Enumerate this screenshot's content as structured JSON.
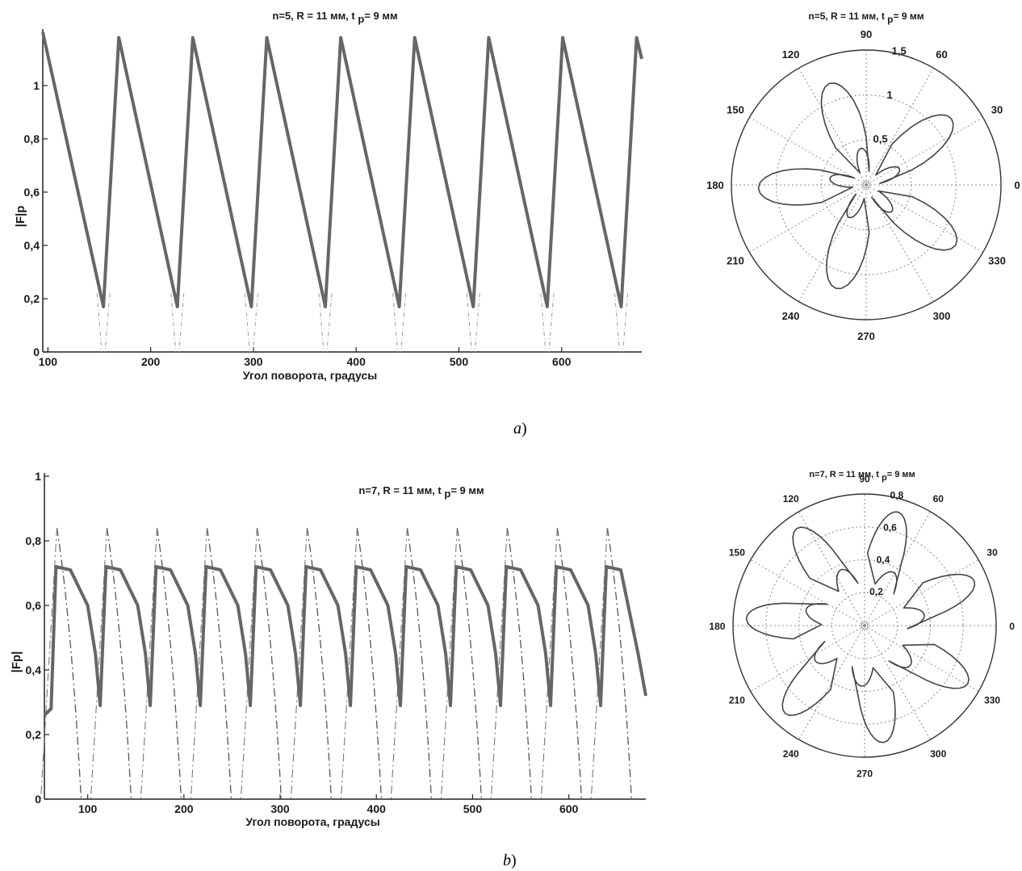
{
  "chart_data": [
    {
      "id": "a-line",
      "type": "line",
      "title": "n=5, R = 11 мм, t p= 9 мм",
      "xlabel": "Угол поворота, градусы",
      "ylabel": "|F|p",
      "xlim": [
        95,
        678
      ],
      "ylim": [
        0,
        1.2
      ],
      "xticks": [
        100,
        200,
        300,
        400,
        500,
        600
      ],
      "yticks": [
        0,
        0.2,
        0.4,
        0.6,
        0.8,
        1
      ],
      "ytick_labels": [
        "0",
        "0,2",
        "0,4",
        "0,6",
        "0,8",
        "1"
      ],
      "grid": false,
      "series": [
        {
          "style": "solid",
          "x": [
            95,
            154,
            154,
            169,
            226,
            226,
            241,
            298,
            298,
            313,
            370,
            370,
            385,
            442,
            442,
            457,
            514,
            514,
            529,
            586,
            586,
            601,
            658,
            658,
            673,
            678
          ],
          "y": [
            1.2,
            0.17,
            0.17,
            1.18,
            0.17,
            0.17,
            1.18,
            0.17,
            0.17,
            1.18,
            0.17,
            0.17,
            1.18,
            0.17,
            0.17,
            1.18,
            0.17,
            0.17,
            1.18,
            0.17,
            0.17,
            1.18,
            0.17,
            0.17,
            1.18,
            1.1
          ]
        }
      ],
      "dashed_minima_x": [
        154,
        226,
        298,
        370,
        442,
        514,
        586,
        658
      ]
    },
    {
      "id": "a-polar",
      "type": "polar",
      "title": "n=5, R = 11 мм, t p= 9 мм",
      "rmax": 1.5,
      "radial_ticks": [
        0.5,
        1,
        1.5
      ],
      "radial_tick_labels": [
        "0,5",
        "1",
        "1,5"
      ],
      "angle_ticks": [
        0,
        30,
        60,
        90,
        120,
        150,
        180,
        210,
        240,
        270,
        300,
        330
      ],
      "blades": 5,
      "blade_peak": 1.2,
      "blade_min": 0.17
    },
    {
      "id": "b-line",
      "type": "line",
      "title": "n=7, R = 11 мм, t p= 9 мм",
      "xlabel": "Угол поворота, градусы",
      "ylabel": "|Fp|",
      "xlim": [
        55,
        680
      ],
      "ylim": [
        0,
        1
      ],
      "xticks": [
        100,
        200,
        300,
        400,
        500,
        600
      ],
      "yticks": [
        0,
        0.2,
        0.4,
        0.6,
        0.8,
        1
      ],
      "ytick_labels": [
        "0",
        "0,2",
        "0,4",
        "0,6",
        "0,8",
        "1"
      ],
      "grid": false,
      "series": [
        {
          "style": "solid",
          "x": [
            55,
            62,
            67,
            82,
            100,
            108,
            113,
            119,
            134,
            152,
            160,
            165,
            171,
            186,
            204,
            212,
            217,
            223,
            238,
            256,
            264,
            269,
            275,
            290,
            308,
            316,
            321,
            327,
            342,
            360,
            368,
            373,
            379,
            394,
            412,
            420,
            425,
            431,
            446,
            464,
            472,
            477,
            483,
            498,
            516,
            524,
            529,
            535,
            550,
            568,
            576,
            581,
            587,
            602,
            620,
            628,
            633,
            639,
            654,
            672,
            680
          ],
          "y": [
            0.26,
            0.28,
            0.72,
            0.71,
            0.6,
            0.45,
            0.29,
            0.72,
            0.71,
            0.6,
            0.45,
            0.29,
            0.72,
            0.71,
            0.6,
            0.45,
            0.29,
            0.72,
            0.71,
            0.6,
            0.45,
            0.29,
            0.72,
            0.71,
            0.6,
            0.45,
            0.29,
            0.72,
            0.71,
            0.6,
            0.45,
            0.29,
            0.72,
            0.71,
            0.6,
            0.45,
            0.29,
            0.72,
            0.71,
            0.6,
            0.45,
            0.29,
            0.72,
            0.71,
            0.6,
            0.45,
            0.29,
            0.72,
            0.71,
            0.6,
            0.45,
            0.29,
            0.72,
            0.71,
            0.6,
            0.45,
            0.29,
            0.72,
            0.71,
            0.45,
            0.32
          ]
        }
      ],
      "dashed_peaks_x": [
        68,
        120,
        172,
        224,
        276,
        328,
        380,
        432,
        484,
        536,
        588,
        640
      ],
      "dashed_peak_y": 0.84
    },
    {
      "id": "b-polar",
      "type": "polar",
      "title": "n=7, R = 11 мм, t p= 9 мм",
      "rmax": 0.8,
      "radial_ticks": [
        0.2,
        0.4,
        0.6,
        0.8
      ],
      "radial_tick_labels": [
        "0,2",
        "0,4",
        "0,6",
        "0,8"
      ],
      "angle_ticks": [
        0,
        30,
        60,
        90,
        120,
        150,
        180,
        210,
        240,
        270,
        300,
        330
      ],
      "blades": 7,
      "blade_peak": 0.72,
      "blade_min": 0.29
    }
  ],
  "captions": {
    "a": "a",
    "b": "b"
  }
}
